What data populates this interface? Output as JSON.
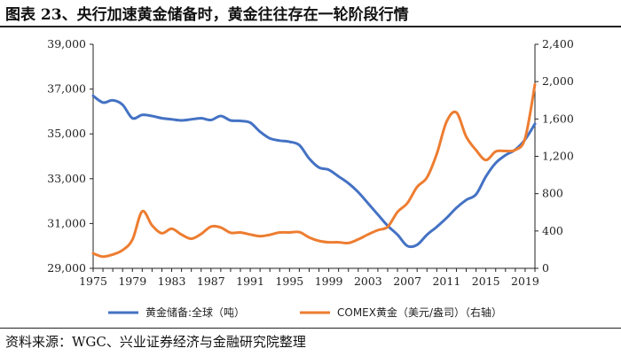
{
  "title": "图表 23、央行加速黄金储备时，黄金往往存在一轮阶段行情",
  "source": "资料来源：WGC、兴业证券经济与金融研究院整理",
  "colors": {
    "left_series": "#4472C4",
    "right_series": "#ED7D31"
  },
  "chart_data": {
    "type": "line",
    "title": "央行加速黄金储备时，黄金往往存在一轮阶段行情",
    "x_ticks": [
      "1975",
      "1979",
      "1983",
      "1987",
      "1991",
      "1995",
      "1999",
      "2003",
      "2007",
      "2011",
      "2015",
      "2019"
    ],
    "x_range": [
      1975,
      2020
    ],
    "y_left": {
      "range": [
        29000,
        39000
      ],
      "ticks": [
        29000,
        31000,
        33000,
        35000,
        37000,
        39000
      ],
      "tick_labels": [
        "29,000",
        "31,000",
        "33,000",
        "35,000",
        "37,000",
        "39,000"
      ]
    },
    "y_right": {
      "range": [
        0,
        2400
      ],
      "ticks": [
        0,
        400,
        800,
        1200,
        1600,
        2000,
        2400
      ],
      "tick_labels": [
        "0",
        "400",
        "800",
        "1,200",
        "1,600",
        "2,000",
        "2,400"
      ]
    },
    "series": [
      {
        "name": "黄金储备:全球（吨）",
        "axis": "left",
        "x": [
          1975,
          1976,
          1977,
          1978,
          1979,
          1980,
          1981,
          1982,
          1983,
          1984,
          1985,
          1986,
          1987,
          1988,
          1989,
          1990,
          1991,
          1992,
          1993,
          1994,
          1995,
          1996,
          1997,
          1998,
          1999,
          2000,
          2001,
          2002,
          2003,
          2004,
          2005,
          2006,
          2007,
          2008,
          2009,
          2010,
          2011,
          2012,
          2013,
          2014,
          2015,
          2016,
          2017,
          2018,
          2019,
          2020
        ],
        "values": [
          36700,
          36400,
          36500,
          36300,
          35700,
          35850,
          35800,
          35700,
          35650,
          35600,
          35650,
          35700,
          35620,
          35800,
          35600,
          35580,
          35500,
          35100,
          34800,
          34700,
          34650,
          34500,
          33900,
          33500,
          33400,
          33100,
          32800,
          32400,
          31900,
          31400,
          30900,
          30500,
          30000,
          30050,
          30500,
          30850,
          31250,
          31700,
          32050,
          32300,
          33100,
          33700,
          34050,
          34300,
          34750,
          35450
        ]
      },
      {
        "name": "COMEX黄金（美元/盎司）（右轴）",
        "axis": "right",
        "x": [
          1975,
          1976,
          1977,
          1978,
          1979,
          1980,
          1981,
          1982,
          1983,
          1984,
          1985,
          1986,
          1987,
          1988,
          1989,
          1990,
          1991,
          1992,
          1993,
          1994,
          1995,
          1996,
          1997,
          1998,
          1999,
          2000,
          2001,
          2002,
          2003,
          2004,
          2005,
          2006,
          2007,
          2008,
          2009,
          2010,
          2011,
          2012,
          2013,
          2014,
          2015,
          2016,
          2017,
          2018,
          2019,
          2020
        ],
        "values": [
          160,
          125,
          148,
          195,
          307,
          610,
          460,
          376,
          424,
          361,
          317,
          368,
          447,
          437,
          381,
          384,
          362,
          344,
          360,
          384,
          384,
          388,
          331,
          294,
          279,
          279,
          271,
          310,
          363,
          409,
          445,
          604,
          697,
          872,
          973,
          1225,
          1571,
          1669,
          1411,
          1266,
          1160,
          1251,
          1257,
          1268,
          1393,
          1970
        ]
      }
    ],
    "legend": [
      "黄金储备:全球（吨）",
      "COMEX黄金（美元/盎司）（右轴）"
    ],
    "legend_position": "bottom"
  }
}
